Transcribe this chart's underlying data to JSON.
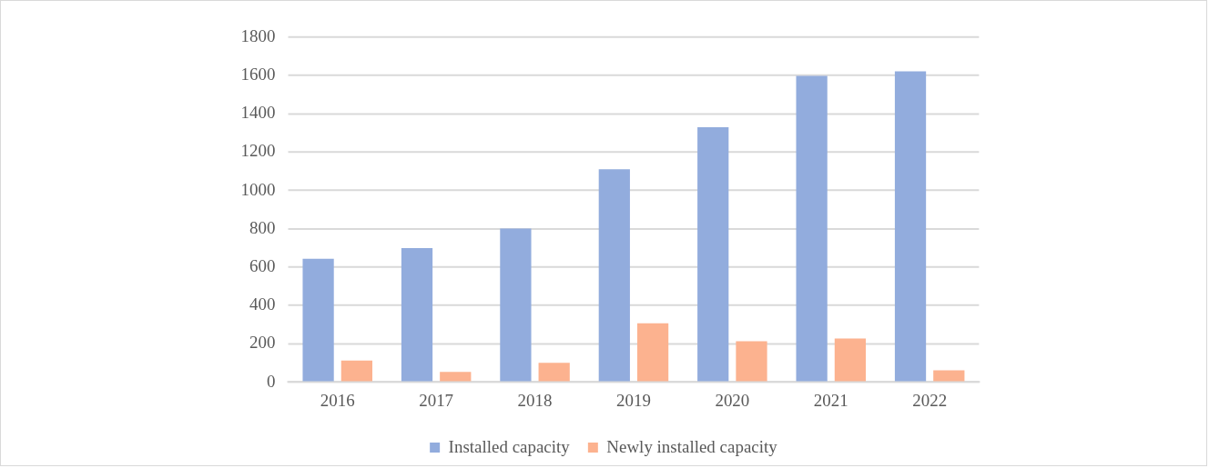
{
  "chart_data": {
    "type": "bar",
    "categories": [
      "2016",
      "2017",
      "2018",
      "2019",
      "2020",
      "2021",
      "2022"
    ],
    "series": [
      {
        "name": "Installed capacity",
        "color": "#92acdd",
        "values": [
          644,
          700,
          801,
          1111,
          1330,
          1598,
          1622
        ]
      },
      {
        "name": "Newly installed capacity",
        "color": "#fcb28f",
        "values": [
          113,
          54,
          101,
          307,
          214,
          228,
          62
        ]
      }
    ],
    "ylim": [
      0,
      1800
    ],
    "yticks": [
      0,
      200,
      400,
      600,
      800,
      1000,
      1200,
      1400,
      1600,
      1800
    ],
    "grid": "y",
    "legend": "bottom"
  }
}
